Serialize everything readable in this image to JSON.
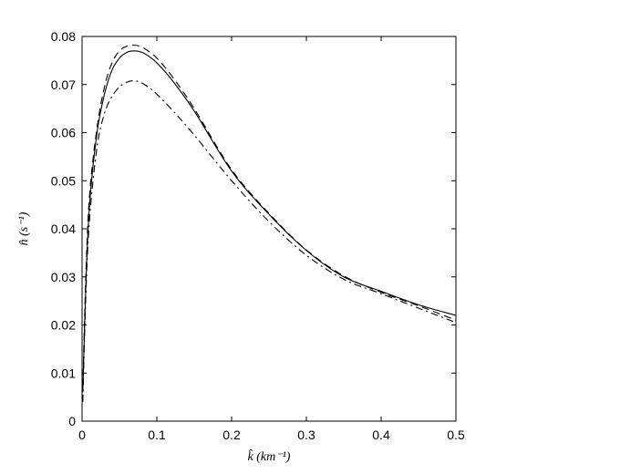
{
  "chart_data": {
    "type": "line",
    "xlabel": "k̂ (km⁻¹)",
    "ylabel": "n̂ (s⁻¹)",
    "xlim": [
      0,
      0.5
    ],
    "ylim": [
      0,
      0.08
    ],
    "x_ticks": [
      0,
      0.1,
      0.2,
      0.3,
      0.4,
      0.5
    ],
    "y_ticks": [
      0,
      0.01,
      0.02,
      0.03,
      0.04,
      0.05,
      0.06,
      0.07,
      0.08
    ],
    "x_tick_labels": [
      "0",
      "0.1",
      "0.2",
      "0.3",
      "0.4",
      "0.5"
    ],
    "y_tick_labels": [
      "0",
      "0.01",
      "0.02",
      "0.03",
      "0.04",
      "0.05",
      "0.06",
      "0.07",
      "0.08"
    ],
    "grid": false,
    "series": [
      {
        "style": "solid",
        "x": [
          0.001,
          0.005,
          0.01,
          0.02,
          0.03,
          0.04,
          0.05,
          0.06,
          0.07,
          0.08,
          0.09,
          0.1,
          0.12,
          0.15,
          0.2,
          0.25,
          0.3,
          0.35,
          0.4,
          0.45,
          0.5
        ],
        "y": [
          0.006,
          0.028,
          0.045,
          0.06,
          0.068,
          0.073,
          0.0755,
          0.0767,
          0.077,
          0.0767,
          0.0758,
          0.0745,
          0.071,
          0.0645,
          0.052,
          0.043,
          0.0355,
          0.03,
          0.027,
          0.0242,
          0.022
        ]
      },
      {
        "style": "dashed",
        "x": [
          0.001,
          0.005,
          0.01,
          0.02,
          0.03,
          0.04,
          0.05,
          0.06,
          0.07,
          0.08,
          0.09,
          0.1,
          0.12,
          0.15,
          0.2,
          0.25,
          0.3,
          0.35,
          0.4,
          0.45,
          0.5
        ],
        "y": [
          0.007,
          0.03,
          0.047,
          0.061,
          0.0695,
          0.0745,
          0.077,
          0.078,
          0.0782,
          0.0778,
          0.0768,
          0.0755,
          0.0718,
          0.065,
          0.0523,
          0.0432,
          0.0356,
          0.0302,
          0.0268,
          0.024,
          0.021
        ]
      },
      {
        "style": "dashdot",
        "x": [
          0.001,
          0.005,
          0.01,
          0.02,
          0.03,
          0.04,
          0.05,
          0.06,
          0.07,
          0.08,
          0.09,
          0.1,
          0.12,
          0.15,
          0.2,
          0.25,
          0.3,
          0.35,
          0.4,
          0.45,
          0.5
        ],
        "y": [
          0.004,
          0.026,
          0.042,
          0.057,
          0.064,
          0.0675,
          0.0695,
          0.0705,
          0.0708,
          0.0703,
          0.0693,
          0.068,
          0.0648,
          0.0595,
          0.05,
          0.0415,
          0.0345,
          0.0295,
          0.0265,
          0.0235,
          0.0205
        ]
      }
    ]
  }
}
